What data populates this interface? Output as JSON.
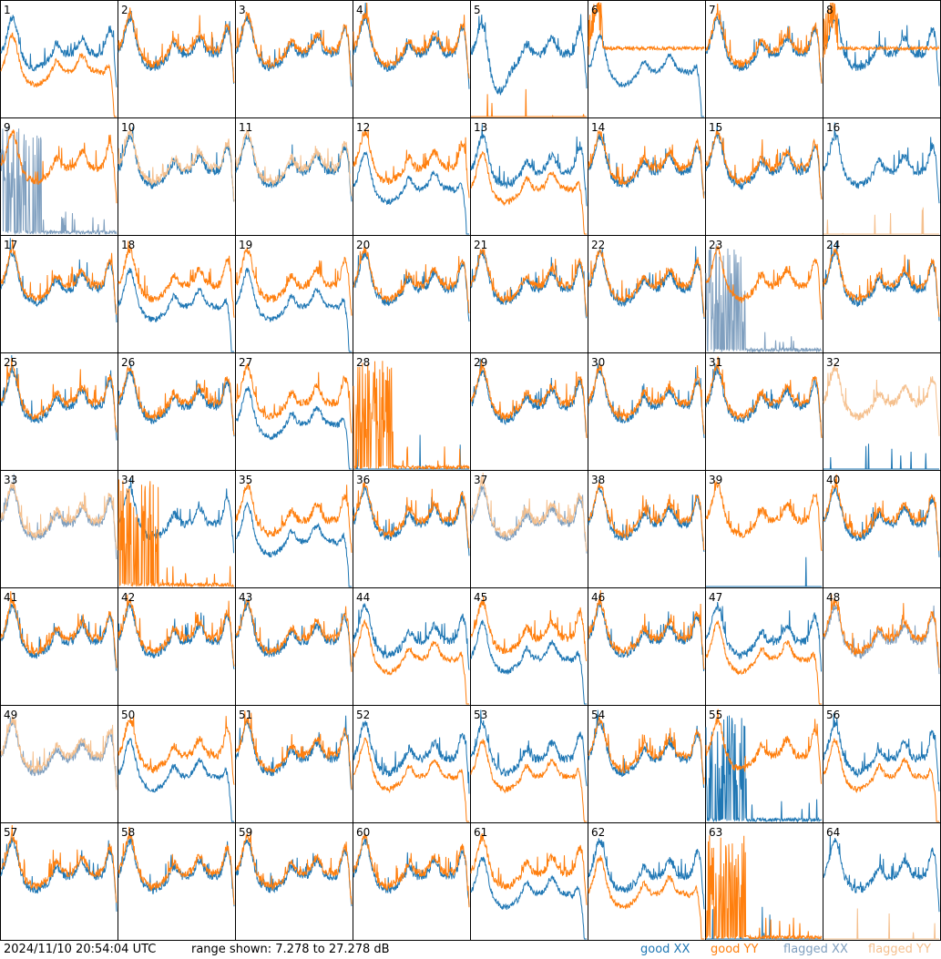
{
  "footer": {
    "timestamp": "2024/11/10 20:54:04 UTC",
    "range": "range shown: 7.278 to 27.278 dB"
  },
  "legend": [
    {
      "key": "good_xx",
      "label": "good XX",
      "color": "#1f77b4"
    },
    {
      "key": "good_yy",
      "label": "good YY",
      "color": "#ff7f0e"
    },
    {
      "key": "flagged_xx",
      "label": "flagged XX",
      "color": "#7f9fbf"
    },
    {
      "key": "flagged_yy",
      "label": "flagged YY",
      "color": "#f5c08e"
    }
  ],
  "chart_data": {
    "type": "line",
    "layout": "8x8 small multiples",
    "y_range_db": [
      7.278,
      27.278
    ],
    "panels": [
      {
        "label": "1",
        "xx": "good",
        "yy": "good",
        "xx_shape": "normal",
        "yy_shape": "rolloff"
      },
      {
        "label": "2",
        "xx": "good",
        "yy": "good",
        "xx_shape": "normal",
        "yy_shape": "normal"
      },
      {
        "label": "3",
        "xx": "good",
        "yy": "good",
        "xx_shape": "normal",
        "yy_shape": "normal"
      },
      {
        "label": "4",
        "xx": "good",
        "yy": "good",
        "xx_shape": "normal",
        "yy_shape": "normal"
      },
      {
        "label": "5",
        "xx": "good",
        "yy": "good",
        "xx_shape": "dip",
        "yy_shape": "dead"
      },
      {
        "label": "6",
        "xx": "good",
        "yy": "good",
        "xx_shape": "rolloff",
        "yy_shape": "plateau"
      },
      {
        "label": "7",
        "xx": "good",
        "yy": "good",
        "xx_shape": "normal",
        "yy_shape": "normal"
      },
      {
        "label": "8",
        "xx": "good",
        "yy": "good",
        "xx_shape": "normal",
        "yy_shape": "plateau"
      },
      {
        "label": "9",
        "xx": "flagged",
        "yy": "good",
        "xx_shape": "spiky",
        "yy_shape": "normal"
      },
      {
        "label": "10",
        "xx": "good",
        "yy": "flagged",
        "xx_shape": "normal",
        "yy_shape": "normal"
      },
      {
        "label": "11",
        "xx": "good",
        "yy": "flagged",
        "xx_shape": "normal",
        "yy_shape": "normal"
      },
      {
        "label": "12",
        "xx": "good",
        "yy": "good",
        "xx_shape": "rolloff",
        "yy_shape": "normal"
      },
      {
        "label": "13",
        "xx": "good",
        "yy": "good",
        "xx_shape": "normal",
        "yy_shape": "rolloff"
      },
      {
        "label": "14",
        "xx": "good",
        "yy": "good",
        "xx_shape": "normal",
        "yy_shape": "normal"
      },
      {
        "label": "15",
        "xx": "good",
        "yy": "good",
        "xx_shape": "normal",
        "yy_shape": "normal"
      },
      {
        "label": "16",
        "xx": "good",
        "yy": "flagged",
        "xx_shape": "normal",
        "yy_shape": "dead"
      },
      {
        "label": "17",
        "xx": "good",
        "yy": "good",
        "xx_shape": "normal",
        "yy_shape": "normal"
      },
      {
        "label": "18",
        "xx": "good",
        "yy": "good",
        "xx_shape": "rolloff",
        "yy_shape": "normal"
      },
      {
        "label": "19",
        "xx": "good",
        "yy": "good",
        "xx_shape": "rolloff",
        "yy_shape": "normal"
      },
      {
        "label": "20",
        "xx": "good",
        "yy": "good",
        "xx_shape": "normal",
        "yy_shape": "normal"
      },
      {
        "label": "21",
        "xx": "good",
        "yy": "good",
        "xx_shape": "normal",
        "yy_shape": "normal"
      },
      {
        "label": "22",
        "xx": "good",
        "yy": "good",
        "xx_shape": "normal",
        "yy_shape": "normal"
      },
      {
        "label": "23",
        "xx": "flagged",
        "yy": "good",
        "xx_shape": "spiky",
        "yy_shape": "normal"
      },
      {
        "label": "24",
        "xx": "good",
        "yy": "good",
        "xx_shape": "normal",
        "yy_shape": "normal"
      },
      {
        "label": "25",
        "xx": "good",
        "yy": "good",
        "xx_shape": "normal",
        "yy_shape": "normal"
      },
      {
        "label": "26",
        "xx": "good",
        "yy": "good",
        "xx_shape": "normal",
        "yy_shape": "normal"
      },
      {
        "label": "27",
        "xx": "good",
        "yy": "good",
        "xx_shape": "rolloff",
        "yy_shape": "normal"
      },
      {
        "label": "28",
        "xx": "good",
        "yy": "good",
        "xx_shape": "dead",
        "yy_shape": "spiky"
      },
      {
        "label": "29",
        "xx": "good",
        "yy": "good",
        "xx_shape": "normal",
        "yy_shape": "normal"
      },
      {
        "label": "30",
        "xx": "good",
        "yy": "good",
        "xx_shape": "normal",
        "yy_shape": "normal"
      },
      {
        "label": "31",
        "xx": "good",
        "yy": "good",
        "xx_shape": "normal",
        "yy_shape": "normal"
      },
      {
        "label": "32",
        "xx": "good",
        "yy": "flagged",
        "xx_shape": "dead",
        "yy_shape": "normal"
      },
      {
        "label": "33",
        "xx": "flagged",
        "yy": "flagged",
        "xx_shape": "normal",
        "yy_shape": "normal"
      },
      {
        "label": "34",
        "xx": "good",
        "yy": "good",
        "xx_shape": "normal",
        "yy_shape": "spiky"
      },
      {
        "label": "35",
        "xx": "good",
        "yy": "good",
        "xx_shape": "rolloff",
        "yy_shape": "normal"
      },
      {
        "label": "36",
        "xx": "good",
        "yy": "good",
        "xx_shape": "normal",
        "yy_shape": "normal"
      },
      {
        "label": "37",
        "xx": "flagged",
        "yy": "flagged",
        "xx_shape": "normal",
        "yy_shape": "normal"
      },
      {
        "label": "38",
        "xx": "good",
        "yy": "good",
        "xx_shape": "normal",
        "yy_shape": "normal"
      },
      {
        "label": "39",
        "xx": "good",
        "yy": "good",
        "xx_shape": "dead",
        "yy_shape": "normal"
      },
      {
        "label": "40",
        "xx": "good",
        "yy": "good",
        "xx_shape": "normal",
        "yy_shape": "normal"
      },
      {
        "label": "41",
        "xx": "good",
        "yy": "good",
        "xx_shape": "normal",
        "yy_shape": "normal"
      },
      {
        "label": "42",
        "xx": "good",
        "yy": "good",
        "xx_shape": "normal",
        "yy_shape": "normal"
      },
      {
        "label": "43",
        "xx": "good",
        "yy": "good",
        "xx_shape": "normal",
        "yy_shape": "normal"
      },
      {
        "label": "44",
        "xx": "good",
        "yy": "good",
        "xx_shape": "normal",
        "yy_shape": "rolloff"
      },
      {
        "label": "45",
        "xx": "good",
        "yy": "good",
        "xx_shape": "rolloff",
        "yy_shape": "normal"
      },
      {
        "label": "46",
        "xx": "good",
        "yy": "good",
        "xx_shape": "normal",
        "yy_shape": "normal"
      },
      {
        "label": "47",
        "xx": "good",
        "yy": "good",
        "xx_shape": "normal",
        "yy_shape": "rolloff"
      },
      {
        "label": "48",
        "xx": "flagged",
        "yy": "good",
        "xx_shape": "normal",
        "yy_shape": "normal"
      },
      {
        "label": "49",
        "xx": "flagged",
        "yy": "flagged",
        "xx_shape": "normal",
        "yy_shape": "normal"
      },
      {
        "label": "50",
        "xx": "good",
        "yy": "good",
        "xx_shape": "rolloff",
        "yy_shape": "normal"
      },
      {
        "label": "51",
        "xx": "good",
        "yy": "good",
        "xx_shape": "normal",
        "yy_shape": "normal"
      },
      {
        "label": "52",
        "xx": "good",
        "yy": "good",
        "xx_shape": "normal",
        "yy_shape": "rolloff"
      },
      {
        "label": "53",
        "xx": "good",
        "yy": "good",
        "xx_shape": "normal",
        "yy_shape": "rolloff"
      },
      {
        "label": "54",
        "xx": "good",
        "yy": "good",
        "xx_shape": "normal",
        "yy_shape": "normal"
      },
      {
        "label": "55",
        "xx": "good",
        "yy": "good",
        "xx_shape": "spiky",
        "yy_shape": "normal"
      },
      {
        "label": "56",
        "xx": "good",
        "yy": "good",
        "xx_shape": "normal",
        "yy_shape": "rolloff"
      },
      {
        "label": "57",
        "xx": "good",
        "yy": "good",
        "xx_shape": "normal",
        "yy_shape": "normal"
      },
      {
        "label": "58",
        "xx": "good",
        "yy": "good",
        "xx_shape": "normal",
        "yy_shape": "normal"
      },
      {
        "label": "59",
        "xx": "good",
        "yy": "good",
        "xx_shape": "normal",
        "yy_shape": "normal"
      },
      {
        "label": "60",
        "xx": "good",
        "yy": "good",
        "xx_shape": "normal",
        "yy_shape": "normal"
      },
      {
        "label": "61",
        "xx": "good",
        "yy": "good",
        "xx_shape": "rolloff",
        "yy_shape": "normal"
      },
      {
        "label": "62",
        "xx": "good",
        "yy": "good",
        "xx_shape": "normal",
        "yy_shape": "rolloff"
      },
      {
        "label": "63",
        "xx": "good",
        "yy": "good",
        "xx_shape": "dead",
        "yy_shape": "spiky"
      },
      {
        "label": "64",
        "xx": "good",
        "yy": "flagged",
        "xx_shape": "normal",
        "yy_shape": "dead"
      }
    ]
  }
}
